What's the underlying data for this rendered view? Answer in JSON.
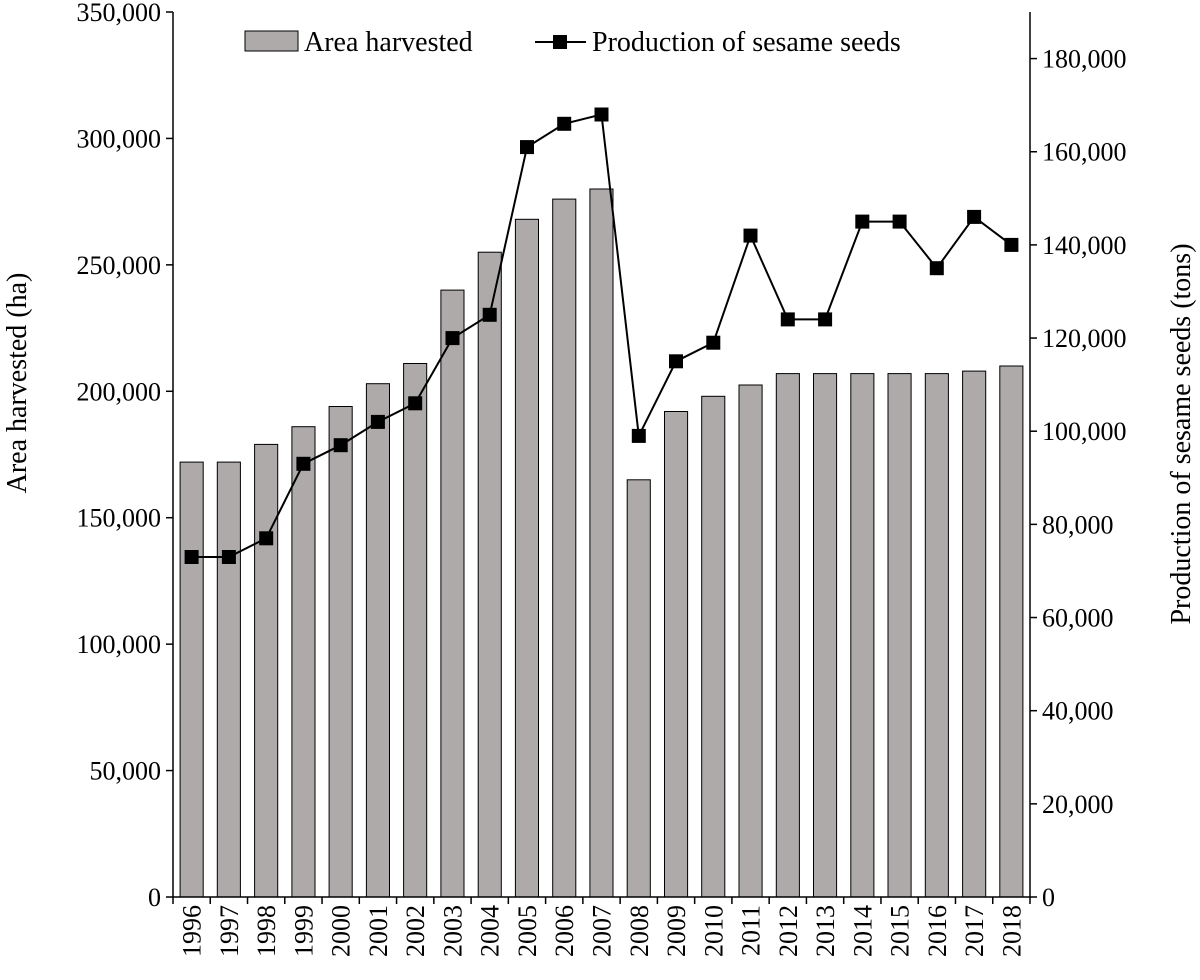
{
  "chart_data": {
    "type": "bar",
    "categories": [
      "1996",
      "1997",
      "1998",
      "1999",
      "2000",
      "2001",
      "2002",
      "2003",
      "2004",
      "2005",
      "2006",
      "2007",
      "2008",
      "2009",
      "2010",
      "2011",
      "2012",
      "2013",
      "2014",
      "2015",
      "2016",
      "2017",
      "2018"
    ],
    "series": [
      {
        "name": "Area harvested",
        "type": "bar",
        "axis": "left",
        "color": "#aeaaaa",
        "values": [
          172000,
          172000,
          179000,
          186000,
          194000,
          203000,
          211000,
          240000,
          255000,
          268000,
          276000,
          280000,
          165000,
          192000,
          198000,
          202500,
          207000,
          207000,
          207000,
          207000,
          207000,
          208000,
          210000
        ]
      },
      {
        "name": "Production of sesame seeds",
        "type": "line",
        "axis": "right",
        "color": "#000000",
        "values": [
          73000,
          73000,
          77000,
          93000,
          97000,
          102000,
          106000,
          120000,
          125000,
          161000,
          166000,
          168000,
          99000,
          115000,
          119000,
          142000,
          124000,
          124000,
          145000,
          145000,
          135000,
          146000,
          140000
        ]
      }
    ],
    "y_left": {
      "label": "Area harvested (ha)",
      "lim": [
        0,
        350000
      ],
      "ticks": [
        0,
        50000,
        100000,
        150000,
        200000,
        250000,
        300000,
        350000
      ],
      "tick_labels": [
        "0",
        "50,000",
        "100,000",
        "150,000",
        "200,000",
        "250,000",
        "300,000",
        "350,000"
      ]
    },
    "y_right": {
      "label": "Production of sesame seeds (tons)",
      "lim": [
        0,
        190000
      ],
      "ticks": [
        0,
        20000,
        40000,
        60000,
        80000,
        100000,
        120000,
        140000,
        160000,
        180000
      ],
      "tick_labels": [
        "0",
        "20,000",
        "40,000",
        "60,000",
        "80,000",
        "100,000",
        "120,000",
        "140,000",
        "160,000",
        "180,000"
      ]
    },
    "legend": {
      "position": "top-center"
    },
    "grid": false
  }
}
